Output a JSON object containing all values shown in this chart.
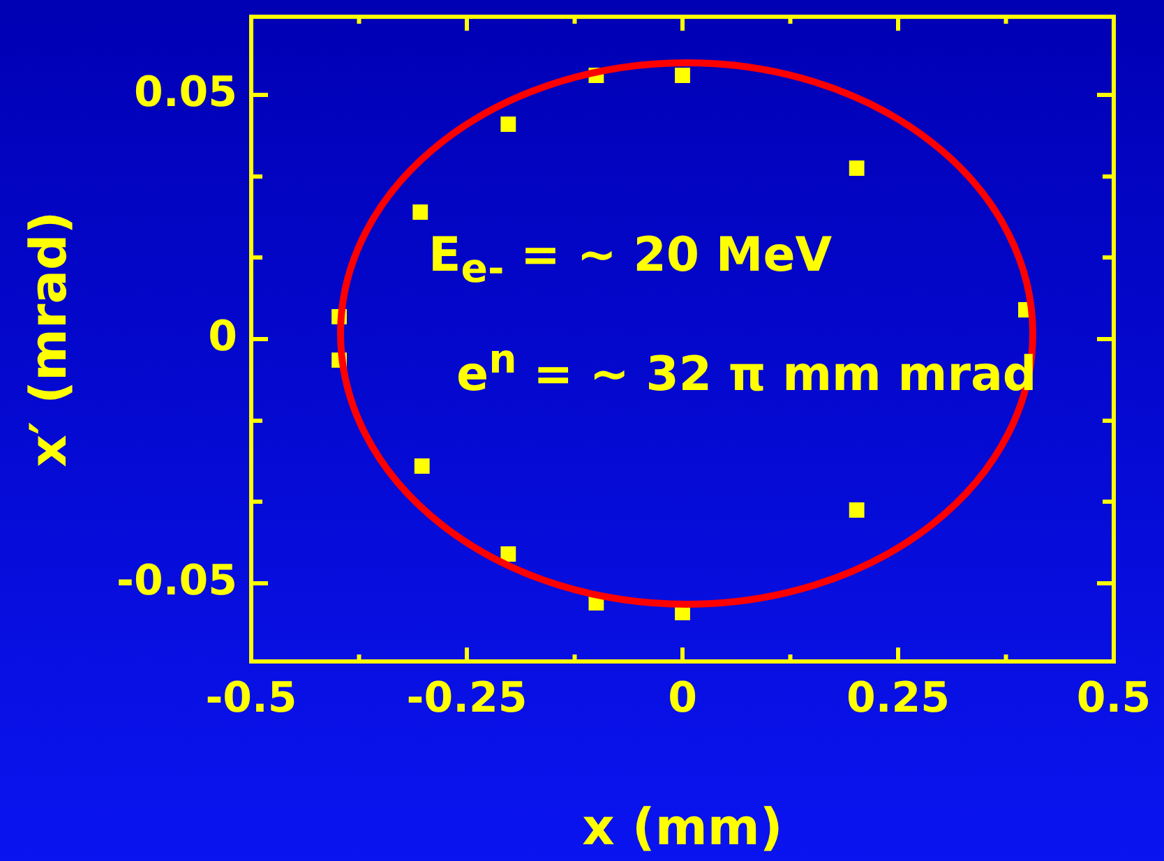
{
  "chart_data": {
    "type": "scatter",
    "xlabel": "x (mm)",
    "ylabel": "x′ (mrad)",
    "xlim": [
      -0.5,
      0.5
    ],
    "ylim": [
      -0.066,
      0.066
    ],
    "xticks": [
      -0.5,
      {
        "value": -0.375,
        "label": null
      },
      -0.25,
      {
        "value": -0.125,
        "label": null
      },
      0,
      {
        "value": 0.125,
        "label": null
      },
      0.25,
      {
        "value": 0.375,
        "label": null
      },
      0.5
    ],
    "yticks": [
      -0.05,
      {
        "value": -0.0333,
        "label": null
      },
      {
        "value": -0.0167,
        "label": null
      },
      0,
      {
        "value": 0.0167,
        "label": null
      },
      {
        "value": 0.0333,
        "label": null
      },
      0.05
    ],
    "legend": false,
    "marker": "square",
    "annotations": [
      "E$_{e-}$ = ~ 20 MeV",
      "e$^{n}$ = ~ 32 π mm mrad"
    ],
    "series": [
      {
        "type": "scatter",
        "color": "#ffff00",
        "x": [
          -0.398,
          -0.398,
          -0.304,
          -0.302,
          -0.202,
          -0.202,
          -0.1,
          -0.1,
          0,
          0,
          0.202,
          0.202,
          0.398
        ],
        "values": [
          0.0046,
          -0.0043,
          0.026,
          -0.026,
          0.044,
          -0.044,
          0.054,
          -0.054,
          0.054,
          -0.056,
          0.035,
          -0.035,
          0.006
        ]
      }
    ]
  }
}
